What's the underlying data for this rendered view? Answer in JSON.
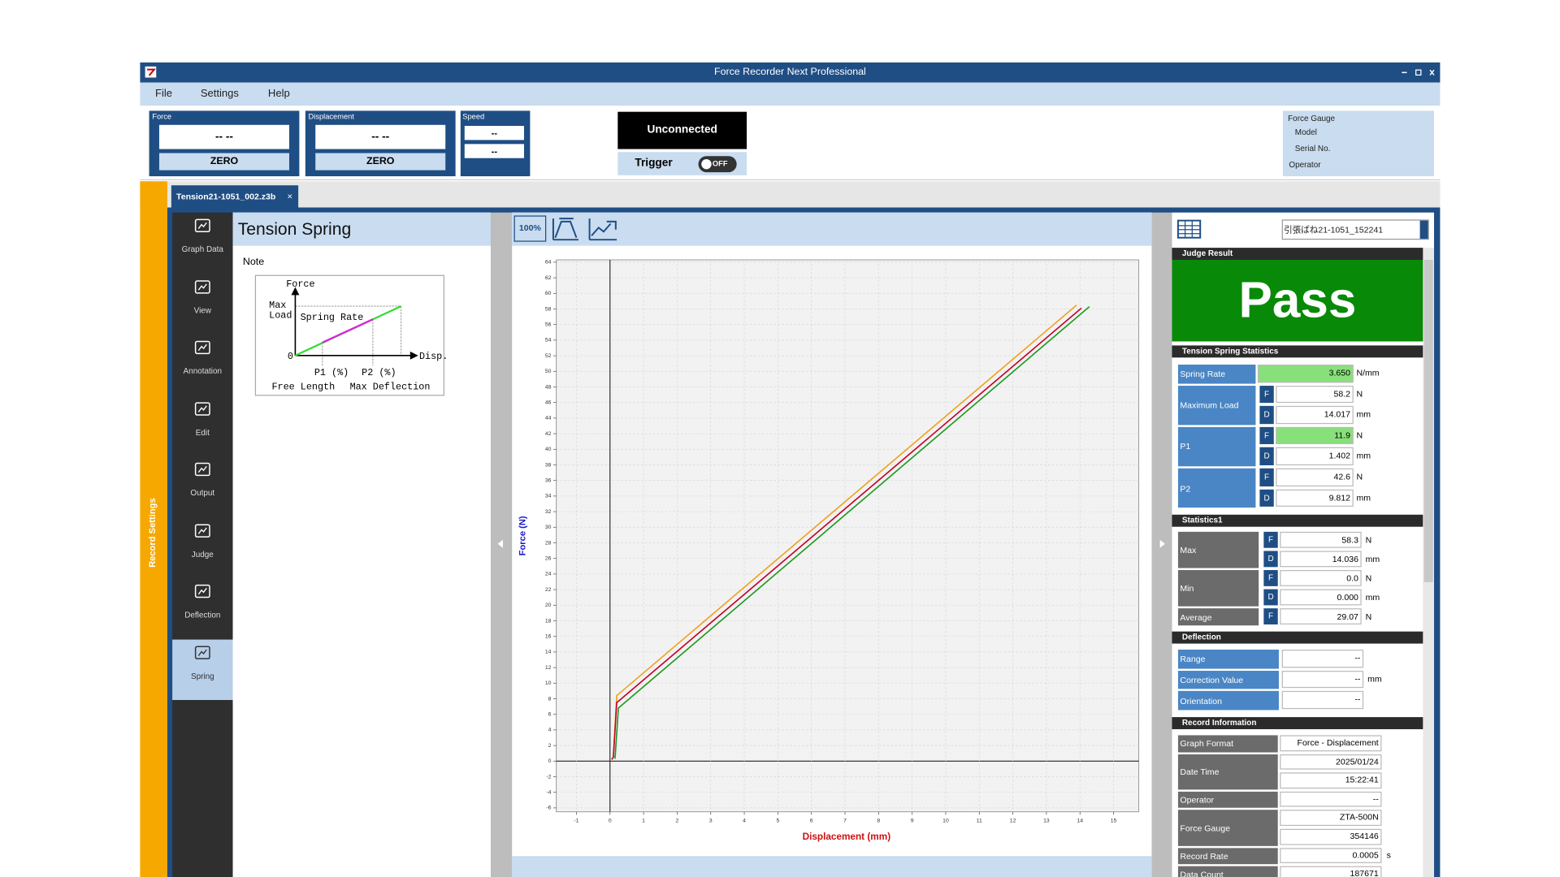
{
  "window": {
    "title": "Force Recorder Next Professional"
  },
  "menu": [
    "File",
    "Settings",
    "Help"
  ],
  "meters": [
    {
      "label": "Force",
      "value": "-- --",
      "button": "ZERO"
    },
    {
      "label": "Displacement",
      "value": "-- --",
      "button": "ZERO"
    }
  ],
  "speed": {
    "label": "Speed",
    "values": [
      "--",
      "--"
    ]
  },
  "connection": {
    "status": "Unconnected",
    "trigger_label": "Trigger",
    "trigger_state": "OFF"
  },
  "gauge_info": [
    "Force Gauge",
    "Model",
    "Serial No.",
    "Operator"
  ],
  "tab": {
    "name": "Tension21-1051_002.z3b",
    "close": "×"
  },
  "sidebar_label": "Record Settings",
  "nav": {
    "items": [
      "Graph Data",
      "View",
      "Annotation",
      "Edit",
      "Output",
      "Judge",
      "Deflection",
      "Spring"
    ],
    "selected": 7
  },
  "settings": {
    "title": "Tension Spring",
    "note": "Note",
    "diagram": {
      "force": "Force",
      "max_load": [
        "Max",
        "Load"
      ],
      "spring_rate": "Spring Rate",
      "origin": "0",
      "disp": "Disp.",
      "p1": "P1 (%)",
      "p2": "P2 (%)",
      "free_length": "Free Length",
      "max_deflection": "Max Deflection"
    }
  },
  "toolbar": {
    "zoom": "100%"
  },
  "chart_data": {
    "type": "line",
    "x_label": "Displacement (mm)",
    "y_label": "Force (N)",
    "xlim": [
      -1.6,
      15.75
    ],
    "ylim": [
      -6.5,
      64.3
    ],
    "xticks": [
      -1,
      0,
      1,
      2,
      3,
      4,
      5,
      6,
      7,
      8,
      9,
      10,
      11,
      12,
      13,
      14,
      15
    ],
    "yticks": [
      -6,
      -4,
      -2,
      0,
      2,
      4,
      6,
      8,
      10,
      12,
      14,
      16,
      18,
      20,
      22,
      24,
      26,
      28,
      30,
      32,
      34,
      36,
      38,
      40,
      42,
      44,
      46,
      48,
      50,
      52,
      54,
      56,
      58,
      60,
      62,
      64
    ],
    "grid": true,
    "series": [
      {
        "color": "#f0a020",
        "x": [
          0.1,
          0.2,
          13.9
        ],
        "values": [
          0.5,
          8.4,
          58.5
        ]
      },
      {
        "color": "#c00028",
        "x": [
          0.05,
          0.1,
          0.2,
          14.04
        ],
        "values": [
          0.2,
          0.5,
          7.5,
          58.1
        ]
      },
      {
        "color": "#1a9a1a",
        "x": [
          0.15,
          0.25,
          14.28
        ],
        "values": [
          0.3,
          6.8,
          58.3
        ]
      }
    ]
  },
  "result_panel": {
    "file": "引張ばね21-1051_152241",
    "judge": {
      "title": "Judge Result",
      "result": "Pass",
      "color": "#088a08"
    },
    "sections": [
      {
        "title": "Tension Spring Statistics",
        "label_color": "#4a86c5",
        "rows": [
          {
            "label": "Spring Rate",
            "items": [
              {
                "value": "3.650",
                "unit": "N/mm",
                "color": "#88e07a"
              }
            ]
          },
          {
            "label": "Maximum Load",
            "items": [
              {
                "tag": "F",
                "value": "58.2",
                "unit": "N"
              },
              {
                "tag": "D",
                "value": "14.017",
                "unit": "mm"
              }
            ]
          },
          {
            "label": "P1",
            "items": [
              {
                "tag": "F",
                "value": "11.9",
                "unit": "N",
                "color": "#88e07a"
              },
              {
                "tag": "D",
                "value": "1.402",
                "unit": "mm"
              }
            ]
          },
          {
            "label": "P2",
            "items": [
              {
                "tag": "F",
                "value": "42.6",
                "unit": "N"
              },
              {
                "tag": "D",
                "value": "9.812",
                "unit": "mm"
              }
            ]
          }
        ]
      },
      {
        "title": "Statistics1",
        "label_color": "#6b6b6b",
        "rows": [
          {
            "label": "Max",
            "items": [
              {
                "tag": "F",
                "value": "58.3",
                "unit": "N"
              },
              {
                "tag": "D",
                "value": "14.036",
                "unit": "mm"
              }
            ]
          },
          {
            "label": "Min",
            "items": [
              {
                "tag": "F",
                "value": "0.0",
                "unit": "N"
              },
              {
                "tag": "D",
                "value": "0.000",
                "unit": "mm"
              }
            ]
          },
          {
            "label": "Average",
            "items": [
              {
                "tag": "F",
                "value": "29.07",
                "unit": "N"
              }
            ]
          }
        ]
      },
      {
        "title": "Deflection",
        "label_color": "#4a86c5",
        "rows": [
          {
            "label": "Range",
            "items": [
              {
                "value": "--"
              }
            ]
          },
          {
            "label": "Correction Value",
            "items": [
              {
                "value": "--",
                "unit": "mm"
              }
            ]
          },
          {
            "label": "Orientation",
            "items": [
              {
                "value": "--"
              }
            ]
          }
        ]
      },
      {
        "title": "Record Information",
        "label_color": "#6b6b6b",
        "rows": [
          {
            "label": "Graph Format",
            "items": [
              {
                "value": "Force - Displacement"
              }
            ]
          },
          {
            "label": "Date Time",
            "items": [
              {
                "value": "2025/01/24"
              },
              {
                "value": "15:22:41"
              }
            ]
          },
          {
            "label": "Operator",
            "items": [
              {
                "value": "--"
              }
            ]
          },
          {
            "label": "Force Gauge",
            "items": [
              {
                "value": "ZTA-500N"
              },
              {
                "value": "354146"
              }
            ]
          },
          {
            "label": "Record Rate",
            "items": [
              {
                "value": "0.0005",
                "unit": "s"
              }
            ]
          },
          {
            "label": "Data Count",
            "items": [
              {
                "value": "187671"
              }
            ]
          }
        ]
      }
    ]
  }
}
